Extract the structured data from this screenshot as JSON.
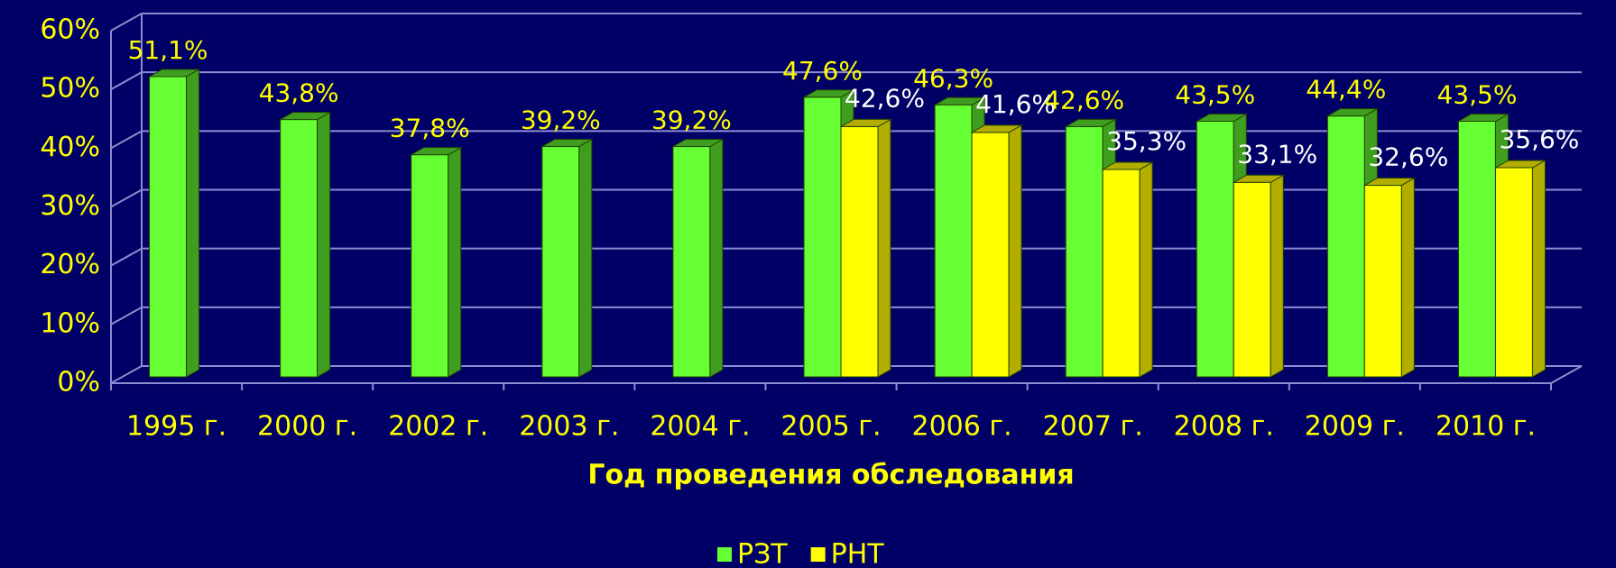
{
  "chart_data": {
    "type": "bar3d",
    "x_label": "Год проведения обследования",
    "categories": [
      "1995 г.",
      "2000 г.",
      "2002 г.",
      "2003 г.",
      "2004 г.",
      "2005 г.",
      "2006 г.",
      "2007 г.",
      "2008 г.",
      "2009 г.",
      "2010 г."
    ],
    "series": [
      {
        "name": "РЗТ",
        "color": "#66ff33",
        "side_color": "#3f9e1f",
        "values": [
          51.1,
          43.8,
          37.8,
          39.2,
          39.2,
          47.6,
          46.3,
          42.6,
          43.5,
          44.4,
          43.5
        ],
        "value_labels": [
          "51,1%",
          "43,8%",
          "37,8%",
          "39,2%",
          "39,2%",
          "47,6%",
          "46,3%",
          "42,6%",
          "43,5%",
          "44,4%",
          "43,5%"
        ]
      },
      {
        "name": "РНТ",
        "color": "#ffff00",
        "side_color": "#b3ad00",
        "values": [
          null,
          null,
          null,
          null,
          null,
          42.6,
          41.6,
          35.3,
          33.1,
          32.6,
          35.6
        ],
        "value_labels": [
          null,
          null,
          null,
          null,
          null,
          "42,6%",
          "41,6%",
          "35,3%",
          "33,1%",
          "32,6%",
          "35,6%"
        ]
      }
    ],
    "ylim": [
      0,
      60
    ],
    "yticks": [
      {
        "value": 0,
        "label": "0%"
      },
      {
        "value": 10,
        "label": "10%"
      },
      {
        "value": 20,
        "label": "20%"
      },
      {
        "value": 30,
        "label": "30%"
      },
      {
        "value": 40,
        "label": "40%"
      },
      {
        "value": 50,
        "label": "50%"
      },
      {
        "value": 60,
        "label": "60%"
      }
    ],
    "grid": true
  }
}
